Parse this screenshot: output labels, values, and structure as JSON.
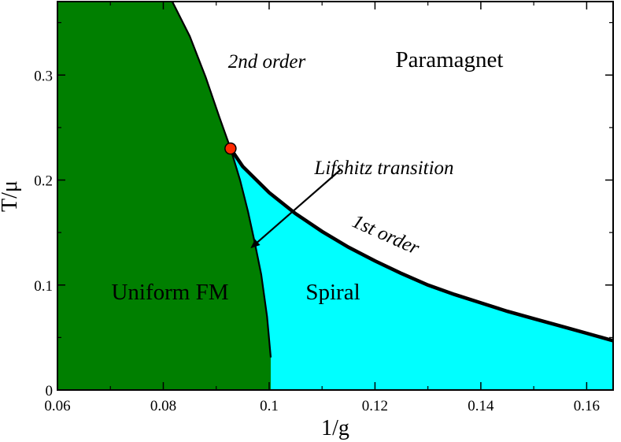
{
  "chart_data": {
    "type": "area",
    "title": "",
    "xlabel": "1/g",
    "ylabel": "T/μ",
    "xlim": [
      0.06,
      0.165
    ],
    "ylim": [
      0,
      0.37
    ],
    "xticks": [
      "0.06",
      "0.08",
      "0.1",
      "0.12",
      "0.14",
      "0.16"
    ],
    "yticks": [
      "0",
      "0.1",
      "0.2",
      "0.3"
    ],
    "xtick_values": [
      0.06,
      0.08,
      0.1,
      0.12,
      0.14,
      0.16
    ],
    "ytick_values": [
      0,
      0.1,
      0.2,
      0.3
    ],
    "grid": false,
    "regions": [
      {
        "label": "Uniform FM",
        "color": "#007f00"
      },
      {
        "label": "Spiral",
        "color": "#00ffff"
      },
      {
        "label": "Paramagnet",
        "color": "#ffffff"
      }
    ],
    "second_order_line": {
      "label": "2nd order",
      "x": [
        0.0817,
        0.085,
        0.088,
        0.0906,
        0.0927,
        0.0945,
        0.096,
        0.0973,
        0.0985,
        0.0996,
        0.1003
      ],
      "y": [
        0.37,
        0.337,
        0.298,
        0.26,
        0.23,
        0.2,
        0.17,
        0.14,
        0.11,
        0.07,
        0.031
      ]
    },
    "first_order_line": {
      "label": "1st order",
      "x": [
        0.0927,
        0.095,
        0.1,
        0.105,
        0.11,
        0.115,
        0.12,
        0.125,
        0.13,
        0.135,
        0.14,
        0.145,
        0.15,
        0.155,
        0.16,
        0.165
      ],
      "y": [
        0.23,
        0.213,
        0.188,
        0.168,
        0.151,
        0.136,
        0.123,
        0.111,
        0.1,
        0.091,
        0.083,
        0.075,
        0.068,
        0.061,
        0.054,
        0.047
      ]
    },
    "lifshitz_point": {
      "x": 0.0927,
      "y": 0.23,
      "color": "#ff2a00"
    },
    "annotations": [
      {
        "text": "Lifshitz transition",
        "x": 0.114,
        "y": 0.21,
        "arrow_to": [
          0.0967,
          0.136
        ]
      },
      {
        "text": "2nd order",
        "x": 0.0865,
        "y": 0.307
      },
      {
        "text": "1st order",
        "x": 0.124,
        "y": 0.139
      }
    ]
  }
}
